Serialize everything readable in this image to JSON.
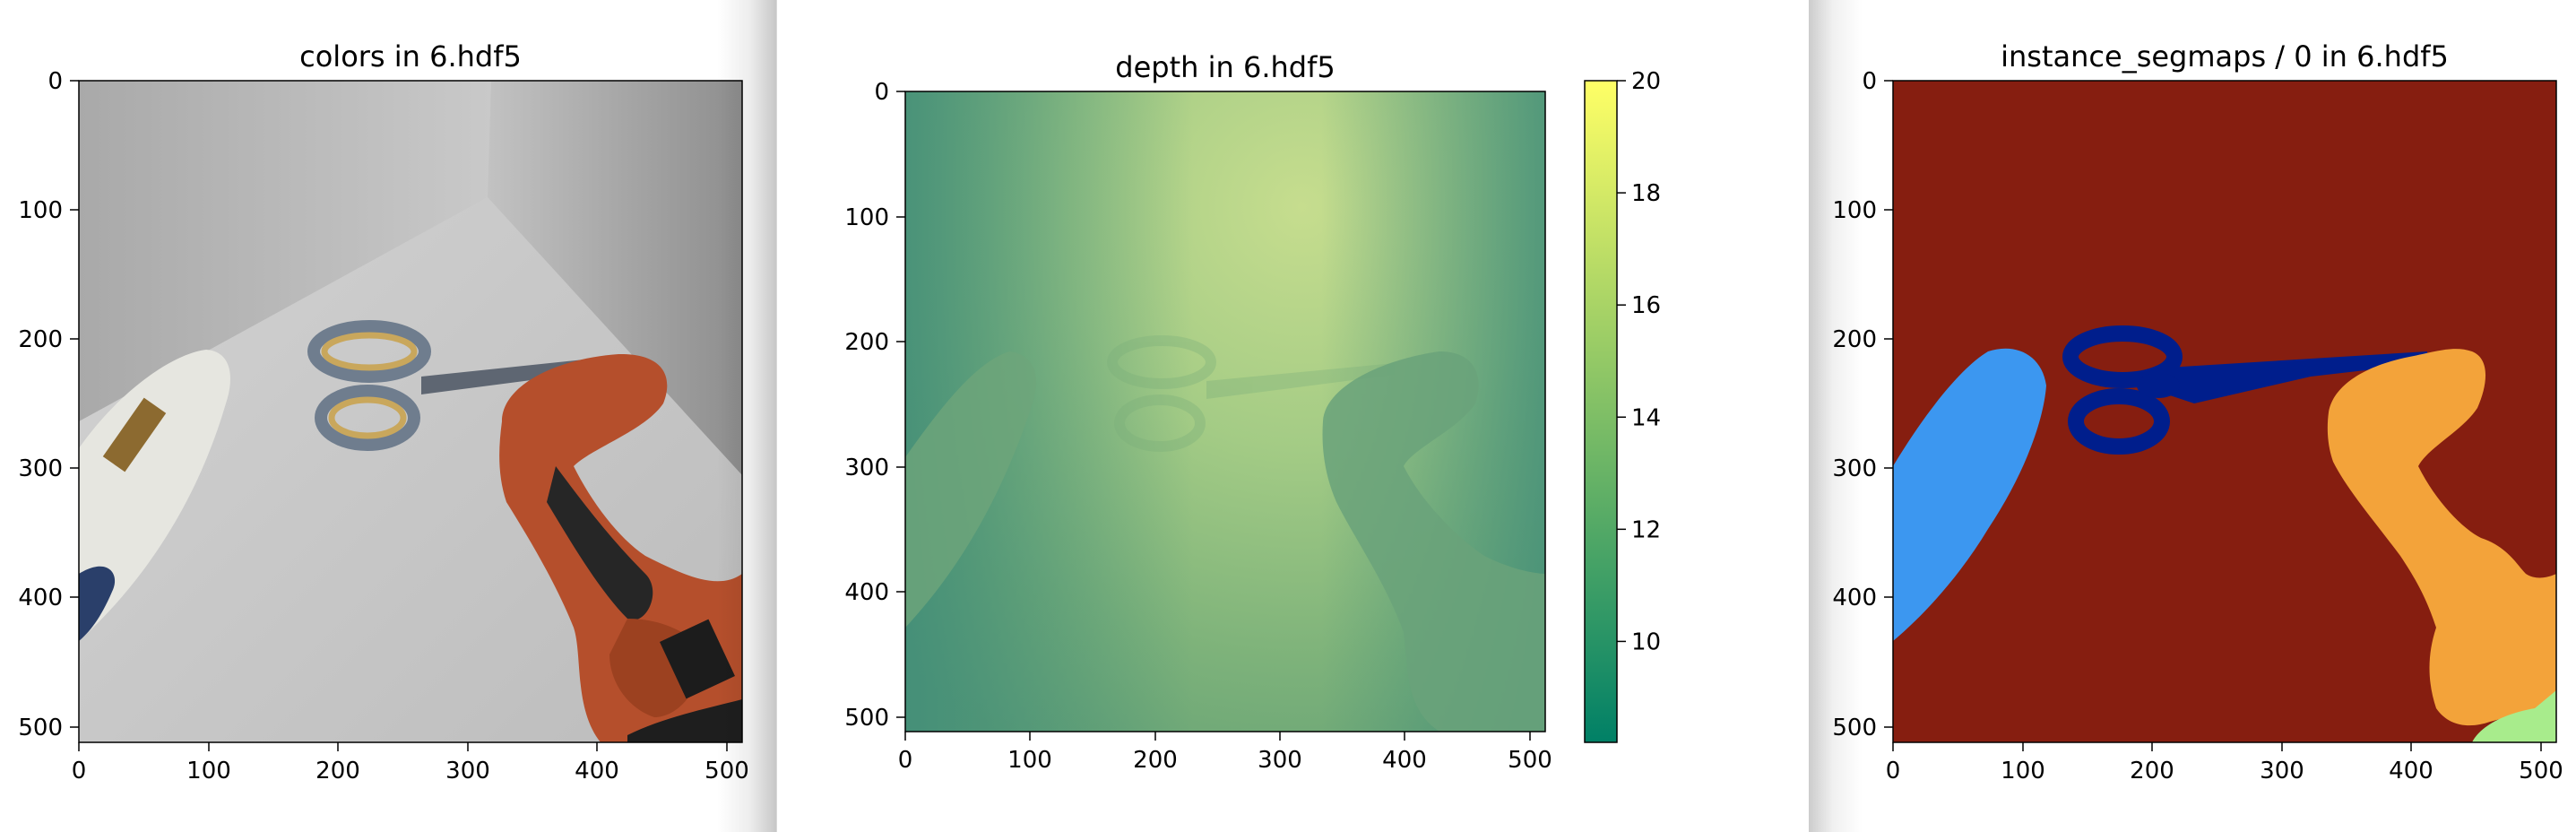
{
  "chart_data": [
    {
      "type": "image",
      "title": "colors in 6.hdf5",
      "xlim": [
        0,
        512
      ],
      "ylim": [
        512,
        0
      ],
      "xticks": [
        0,
        100,
        200,
        300,
        400,
        500
      ],
      "yticks": [
        0,
        100,
        200,
        300,
        400,
        500
      ],
      "xtick_labels": [
        "0",
        "100",
        "200",
        "300",
        "400",
        "500"
      ],
      "ytick_labels": [
        "0",
        "100",
        "200",
        "300",
        "400",
        "500"
      ],
      "content": "RGB render of a scissors, a cordless drill and a lotion bottle on a grey floor in a room corner"
    },
    {
      "type": "heatmap",
      "title": "depth in 6.hdf5",
      "xlim": [
        0,
        512
      ],
      "ylim": [
        512,
        0
      ],
      "xticks": [
        0,
        100,
        200,
        300,
        400,
        500
      ],
      "yticks": [
        0,
        100,
        200,
        300,
        400,
        500
      ],
      "xtick_labels": [
        "0",
        "100",
        "200",
        "300",
        "400",
        "500"
      ],
      "ytick_labels": [
        "0",
        "100",
        "200",
        "300",
        "400",
        "500"
      ],
      "colormap": "summer",
      "colorbar": {
        "range": [
          8.2,
          20
        ],
        "ticks": [
          10,
          12,
          14,
          16,
          18,
          20
        ],
        "tick_labels": [
          "10",
          "12",
          "14",
          "16",
          "18",
          "20"
        ]
      }
    },
    {
      "type": "image",
      "title": "instance_segmaps / 0 in 6.hdf5",
      "xlim": [
        0,
        512
      ],
      "ylim": [
        512,
        0
      ],
      "xticks": [
        0,
        100,
        200,
        300,
        400,
        500
      ],
      "yticks": [
        0,
        100,
        200,
        300,
        400,
        500
      ],
      "xtick_labels": [
        "0",
        "100",
        "200",
        "300",
        "400",
        "500"
      ],
      "ytick_labels": [
        "0",
        "100",
        "200",
        "300",
        "400",
        "500"
      ],
      "segments": [
        {
          "label": "background",
          "color": "#861e10"
        },
        {
          "label": "bottle",
          "color": "#3c97f0"
        },
        {
          "label": "scissors",
          "color": "#001e8c"
        },
        {
          "label": "drill",
          "color": "#f3a33a"
        },
        {
          "label": "corner object",
          "color": "#a8ec8c"
        }
      ]
    }
  ],
  "colors": {
    "depth_low": "#3d8a78",
    "depth_mid": "#8fc184",
    "depth_high": "#c6dd8e",
    "colorbar_top": "#ffff66",
    "colorbar_bottom": "#008066"
  }
}
